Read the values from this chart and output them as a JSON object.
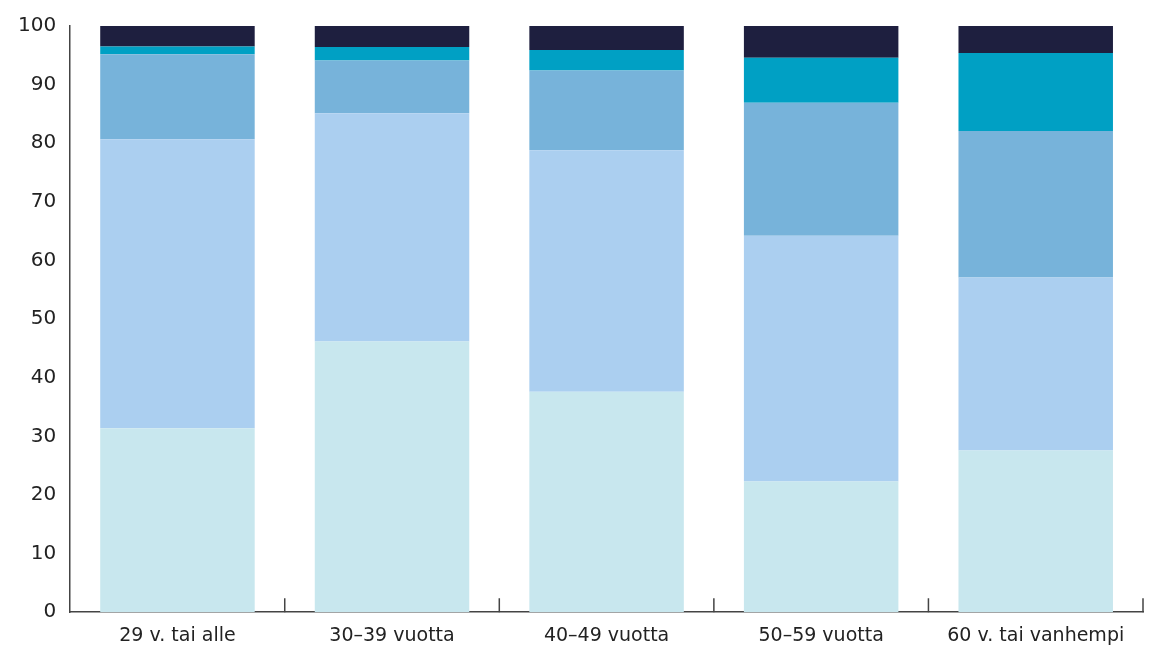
{
  "chart_data": {
    "type": "bar",
    "stacked": true,
    "categories": [
      "29 v. tai alle",
      "30–39 vuotta",
      "40–49 vuotta",
      "50–59 vuotta",
      "60 v. tai vanhempi"
    ],
    "series": [
      {
        "color": "#c8e7ee",
        "values": [
          31.4,
          46.2,
          37.6,
          22.3,
          27.6
        ]
      },
      {
        "color": "#abcff0",
        "values": [
          49.3,
          38.9,
          41.2,
          41.9,
          29.5
        ]
      },
      {
        "color": "#77b3da",
        "values": [
          14.5,
          9.0,
          13.6,
          22.7,
          25.0
        ]
      },
      {
        "color": "#00a0c4",
        "values": [
          1.3,
          2.3,
          3.5,
          7.7,
          13.3
        ]
      },
      {
        "color": "#1e1f3f",
        "values": [
          3.5,
          3.6,
          4.1,
          5.4,
          4.6
        ]
      }
    ],
    "ylim": [
      0,
      100
    ],
    "yticks": [
      0,
      10,
      20,
      30,
      40,
      50,
      60,
      70,
      80,
      90,
      100
    ],
    "grid": false,
    "legend": false
  }
}
